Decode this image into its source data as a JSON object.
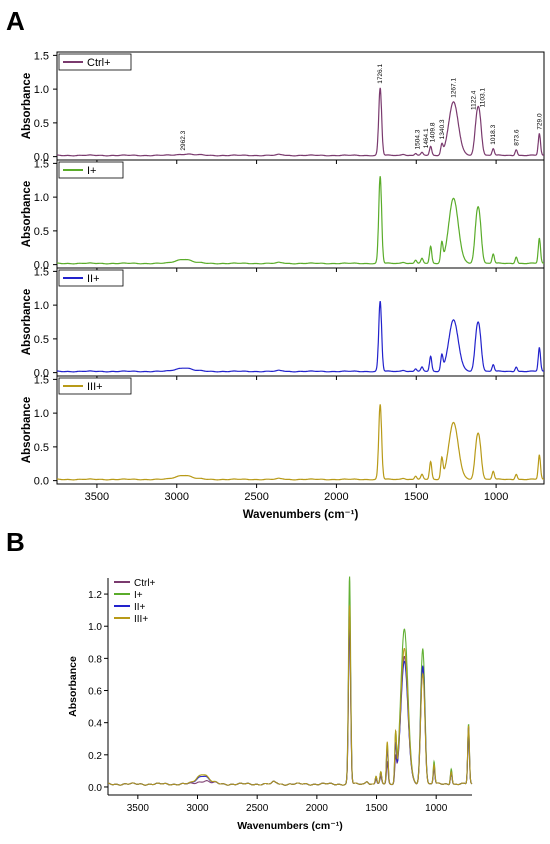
{
  "panels": {
    "A": "A",
    "B": "B"
  },
  "chart_data": [
    {
      "type": "line",
      "panel": "A",
      "layout": "stacked",
      "xlabel": "Wavenumbers (cm⁻¹)",
      "ylabel": "Absorbance",
      "xlim": [
        3750,
        700
      ],
      "x_reversed": true,
      "ylim": [
        -0.05,
        1.55
      ],
      "xticks": [
        3500,
        3000,
        2500,
        2000,
        1500,
        1000
      ],
      "yticks": [
        0.0,
        0.5,
        1.0,
        1.5
      ],
      "ytick_labels": [
        "0.0",
        "0.5",
        "1.0",
        "1.5"
      ],
      "legend_position": "top-left",
      "peak_labels": [
        "2962.3",
        "1726.1",
        "1504.3",
        "1464.1",
        "1409.8",
        "1340.3",
        "1267.1",
        "1122.4",
        "1103.1",
        "1018.3",
        "873.6",
        "729.0"
      ],
      "series": [
        {
          "name": "Ctrl+",
          "color": "#7a3a6e",
          "peaks": [
            [
              2962,
              0.015
            ],
            [
              1726,
              1.0
            ],
            [
              1504,
              0.03
            ],
            [
              1464,
              0.04
            ],
            [
              1410,
              0.13
            ],
            [
              1340,
              0.14
            ],
            [
              1267,
              0.79
            ],
            [
              1122,
              0.45
            ],
            [
              1103,
              0.5
            ],
            [
              1018,
              0.1
            ],
            [
              874,
              0.09
            ],
            [
              729,
              0.32
            ]
          ]
        },
        {
          "name": "I+",
          "color": "#5aac2a",
          "peaks": [
            [
              2962,
              0.06
            ],
            [
              1726,
              1.29
            ],
            [
              1504,
              0.05
            ],
            [
              1464,
              0.07
            ],
            [
              1410,
              0.25
            ],
            [
              1340,
              0.28
            ],
            [
              1267,
              0.96
            ],
            [
              1122,
              0.55
            ],
            [
              1103,
              0.55
            ],
            [
              1018,
              0.14
            ],
            [
              874,
              0.1
            ],
            [
              729,
              0.37
            ]
          ]
        },
        {
          "name": "II+",
          "color": "#2222cc",
          "peaks": [
            [
              2962,
              0.05
            ],
            [
              1726,
              1.04
            ],
            [
              1504,
              0.04
            ],
            [
              1464,
              0.06
            ],
            [
              1410,
              0.22
            ],
            [
              1340,
              0.22
            ],
            [
              1267,
              0.76
            ],
            [
              1122,
              0.48
            ],
            [
              1103,
              0.48
            ],
            [
              1018,
              0.1
            ],
            [
              874,
              0.07
            ],
            [
              729,
              0.35
            ]
          ]
        },
        {
          "name": "III+",
          "color": "#b89a18",
          "peaks": [
            [
              2962,
              0.06
            ],
            [
              1726,
              1.11
            ],
            [
              1504,
              0.05
            ],
            [
              1464,
              0.07
            ],
            [
              1410,
              0.26
            ],
            [
              1340,
              0.29
            ],
            [
              1267,
              0.84
            ],
            [
              1122,
              0.45
            ],
            [
              1103,
              0.45
            ],
            [
              1018,
              0.12
            ],
            [
              874,
              0.08
            ],
            [
              729,
              0.36
            ]
          ]
        }
      ]
    },
    {
      "type": "line",
      "panel": "B",
      "layout": "overlay",
      "xlabel": "Wavenumbers (cm⁻¹)",
      "ylabel": "Absorbance",
      "xlim": [
        3750,
        700
      ],
      "x_reversed": true,
      "ylim": [
        -0.05,
        1.3
      ],
      "xticks": [
        3500,
        3000,
        2500,
        2000,
        1500,
        1000
      ],
      "yticks": [
        0.0,
        0.2,
        0.4,
        0.6,
        0.8,
        1.0,
        1.2
      ],
      "ytick_labels": [
        "0.0",
        "0.2",
        "0.4",
        "0.6",
        "0.8",
        "1.0",
        "1.2"
      ],
      "legend_position": "top-left",
      "series_order": [
        "Ctrl+",
        "I+",
        "II+",
        "III+"
      ]
    }
  ]
}
